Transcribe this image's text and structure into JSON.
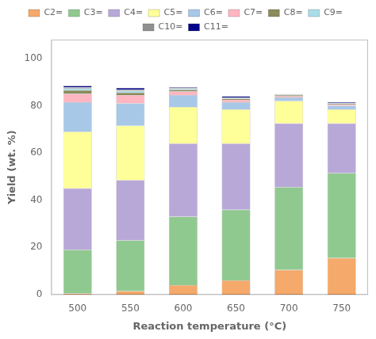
{
  "chart_data": {
    "type": "bar",
    "stacked": true,
    "categories": [
      "500",
      "550",
      "600",
      "650",
      "700",
      "750"
    ],
    "series": [
      {
        "name": "C2=",
        "color": "#F5A96A",
        "values": [
          0.5,
          1.5,
          4.0,
          6.0,
          10.5,
          15.5
        ]
      },
      {
        "name": "C3=",
        "color": "#90C990",
        "values": [
          18.5,
          21.5,
          29.0,
          30.0,
          35.0,
          36.0
        ]
      },
      {
        "name": "C4=",
        "color": "#B8A8D8",
        "values": [
          26.0,
          25.5,
          31.0,
          28.0,
          27.0,
          21.0
        ]
      },
      {
        "name": "C5=",
        "color": "#FFFF99",
        "values": [
          24.0,
          23.0,
          15.5,
          14.5,
          9.5,
          6.0
        ]
      },
      {
        "name": "C6=",
        "color": "#A8C8E8",
        "values": [
          12.5,
          9.5,
          5.0,
          3.0,
          1.5,
          1.5
        ]
      },
      {
        "name": "C7=",
        "color": "#FFB6C1",
        "values": [
          3.5,
          3.5,
          1.5,
          1.0,
          0.5,
          0.5
        ]
      },
      {
        "name": "C8=",
        "color": "#8B8B5B",
        "values": [
          1.5,
          1.0,
          0.8,
          0.5,
          0.5,
          0.3
        ]
      },
      {
        "name": "C9=",
        "color": "#AADDE8",
        "values": [
          0.8,
          0.8,
          0.5,
          0.3,
          0.2,
          0.2
        ]
      },
      {
        "name": "C10=",
        "color": "#909090",
        "values": [
          0.5,
          0.5,
          0.3,
          0.2,
          0.2,
          0.2
        ]
      },
      {
        "name": "C11=",
        "color": "#00008B",
        "values": [
          0.7,
          0.7,
          0.4,
          0.5,
          0.1,
          0.3
        ]
      }
    ],
    "xlabel": "Reaction temperature (°C)",
    "ylabel": "Yield (wt. %)",
    "ylim": [
      0,
      108
    ],
    "yticks": [
      0,
      20,
      40,
      60,
      80,
      100
    ],
    "grid": false,
    "legend": "top"
  }
}
